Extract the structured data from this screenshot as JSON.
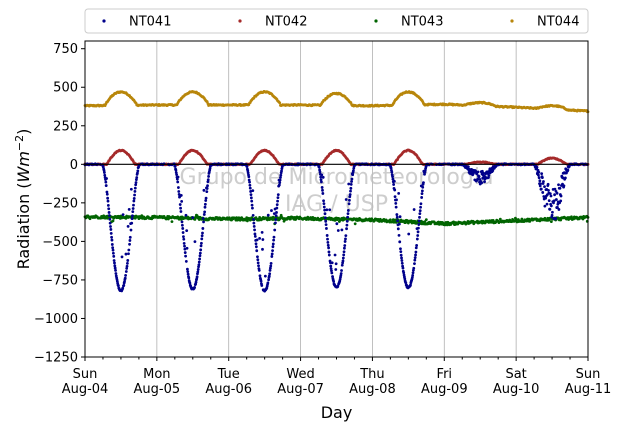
{
  "chart_data": {
    "type": "scatter",
    "xlabel": "Day",
    "ylabel_main": "Radiation (",
    "ylabel_unit": "Wm",
    "ylabel_exp": "−2",
    "ylabel_close": ")",
    "ylim": [
      -1250,
      800
    ],
    "xlim_days": [
      0,
      7
    ],
    "yticks": [
      800,
      750,
      500,
      250,
      0,
      -250,
      -500,
      -750,
      -1000,
      -1250
    ],
    "ytick_labels": [
      "750",
      "500",
      "250",
      "0",
      "−250",
      "−500",
      "−750",
      "−1000",
      "−1250"
    ],
    "ytick_values": [
      750,
      500,
      250,
      0,
      -250,
      -500,
      -750,
      -1000,
      -1250
    ],
    "xticks": [
      {
        "day": 0,
        "line1": "Sun",
        "line2": "Aug-04"
      },
      {
        "day": 1,
        "line1": "Mon",
        "line2": "Aug-05"
      },
      {
        "day": 2,
        "line1": "Tue",
        "line2": "Aug-06"
      },
      {
        "day": 3,
        "line1": "Wed",
        "line2": "Aug-07"
      },
      {
        "day": 4,
        "line1": "Thu",
        "line2": "Aug-08"
      },
      {
        "day": 5,
        "line1": "Fri",
        "line2": "Aug-09"
      },
      {
        "day": 6,
        "line1": "Sat",
        "line2": "Aug-10"
      },
      {
        "day": 7,
        "line1": "Sun",
        "line2": "Aug-11"
      }
    ],
    "grid": "vertical",
    "legend_position": "top",
    "watermark": [
      "Grupo de Micrometeorologia",
      "IAG / USP"
    ],
    "series": [
      {
        "name": "NT041",
        "color": "#00008b",
        "description": "net shortwave-like radiation: ~0 at night, negative daytime dips",
        "daily_minimum": [
          -820,
          -810,
          -820,
          -800,
          -800,
          -110,
          -320
        ]
      },
      {
        "name": "NT042",
        "color": "#a52a2a",
        "description": "near 0 at night, daytime peaks",
        "daily_peak": [
          90,
          90,
          90,
          90,
          90,
          15,
          40
        ]
      },
      {
        "name": "NT043",
        "color": "#006400",
        "description": "around -340 to -390 throughout",
        "points": [
          [
            0,
            -340
          ],
          [
            1,
            -345
          ],
          [
            2,
            -355
          ],
          [
            3,
            -350
          ],
          [
            4,
            -360
          ],
          [
            5,
            -385
          ],
          [
            6,
            -365
          ],
          [
            7,
            -345
          ]
        ]
      },
      {
        "name": "NT044",
        "color": "#b8860b",
        "description": "around 380 at night, ~470 daytime peaks",
        "daily_peak": [
          470,
          470,
          470,
          460,
          470,
          400,
          380
        ],
        "baseline": [
          380,
          385,
          385,
          385,
          380,
          390,
          370,
          345
        ]
      }
    ]
  }
}
